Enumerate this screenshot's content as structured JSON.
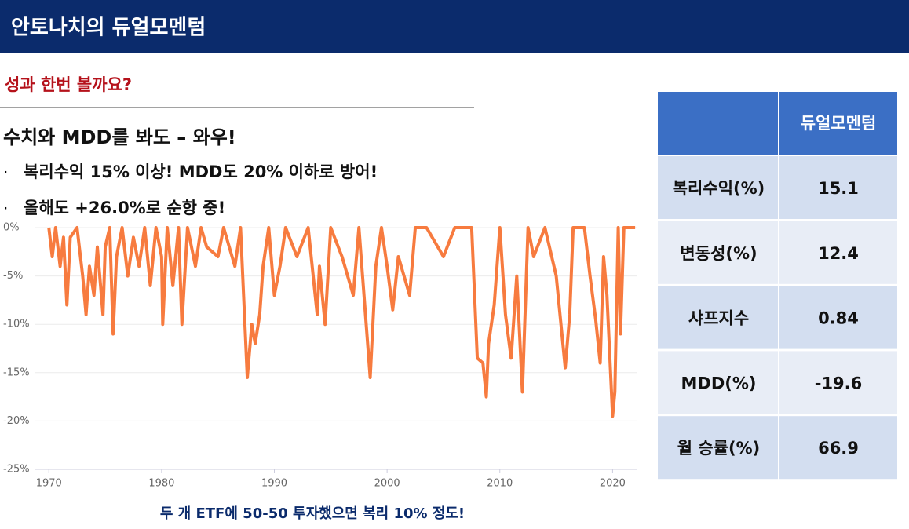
{
  "header": {
    "title": "안토나치의 듀얼모멘텀"
  },
  "subtitle": "성과 한번 볼까요?",
  "headline": "수치와 MDD를 봐도 – 와우!",
  "bullets": [
    "복리수익 15% 이상! MDD도 20% 이하로 방어!",
    "올해도 +26.0%로 순항 중!"
  ],
  "chart_data": {
    "type": "line",
    "color": "#f77b3f",
    "x": [
      1970,
      1970.3,
      1970.6,
      1971,
      1971.3,
      1971.6,
      1971.9,
      1972.5,
      1973,
      1973.3,
      1973.6,
      1974,
      1974.3,
      1974.8,
      1975,
      1975.4,
      1975.7,
      1976,
      1976.5,
      1977,
      1977.5,
      1978,
      1978.5,
      1979,
      1979.5,
      1980,
      1980.1,
      1980.5,
      1981,
      1981.5,
      1981.8,
      1982.3,
      1983,
      1983.5,
      1984,
      1985,
      1985.5,
      1986.5,
      1987,
      1987.6,
      1988,
      1988.3,
      1988.7,
      1989,
      1989.5,
      1990,
      1990.5,
      1991,
      1992,
      1993,
      1993.8,
      1994,
      1994.5,
      1995,
      1996,
      1997,
      1997.5,
      1998.5,
      1999,
      1999.5,
      2000,
      2000.5,
      2001,
      2002,
      2002.5,
      2003.5,
      2005,
      2006,
      2007.5,
      2008,
      2008.5,
      2008.8,
      2009,
      2009.5,
      2010,
      2010.5,
      2011,
      2011.5,
      2012,
      2012.5,
      2013,
      2014,
      2015,
      2015.8,
      2016.2,
      2016.5,
      2017.5,
      2018,
      2018.5,
      2018.9,
      2019.2,
      2019.5,
      2020,
      2020.2,
      2020.5,
      2020.7,
      2021,
      2022
    ],
    "values": [
      0,
      -3,
      0,
      -4,
      -1,
      -8,
      -1,
      0,
      -5,
      -9,
      -4,
      -7,
      -2,
      -9,
      -2,
      0,
      -11,
      -3,
      0,
      -5,
      -1,
      -4,
      0,
      -6,
      0,
      -3,
      -10,
      0,
      -6,
      0,
      -10,
      0,
      -4,
      0,
      -2,
      -3,
      0,
      -4,
      0,
      -15.5,
      -10,
      -12,
      -9,
      -4,
      0,
      -7,
      -4,
      0,
      -3,
      0,
      -9,
      -4,
      -10,
      0,
      -3,
      -7,
      0,
      -15.5,
      -4,
      0,
      -4,
      -8.5,
      -3,
      -7,
      0,
      0,
      -3,
      0,
      0,
      -13.5,
      -14,
      -17.5,
      -12,
      -8,
      0,
      -9,
      -13.5,
      -5,
      -17,
      0,
      -3,
      0,
      -5,
      -14.5,
      -9,
      0,
      0,
      -5,
      -9.5,
      -14,
      -3,
      -7,
      -19.5,
      -17,
      0,
      -11,
      0,
      0
    ],
    "xlim": [
      1968.8,
      2022.2
    ],
    "xticks": [
      1970,
      1980,
      1990,
      2000,
      2010,
      2020
    ],
    "ylim": [
      -25,
      0
    ],
    "yticks": [
      {
        "value": 0,
        "label": "0%"
      },
      {
        "value": -5,
        "label": "-5%"
      },
      {
        "value": -10,
        "label": "-10%"
      },
      {
        "value": -15,
        "label": "-15%"
      },
      {
        "value": -20,
        "label": "-20%"
      },
      {
        "value": -25,
        "label": "-25%"
      }
    ],
    "grid": true
  },
  "footnote": "두 개 ETF에 50-50 투자했으면 복리 10% 정도!",
  "table": {
    "header": "듀얼모멘텀",
    "rows": [
      [
        "복리수익(%)",
        "15.1"
      ],
      [
        "변동성(%)",
        "12.4"
      ],
      [
        "샤프지수",
        "0.84"
      ],
      [
        "MDD(%)",
        "-19.6"
      ],
      [
        "월 승률(%)",
        "66.9"
      ]
    ]
  }
}
